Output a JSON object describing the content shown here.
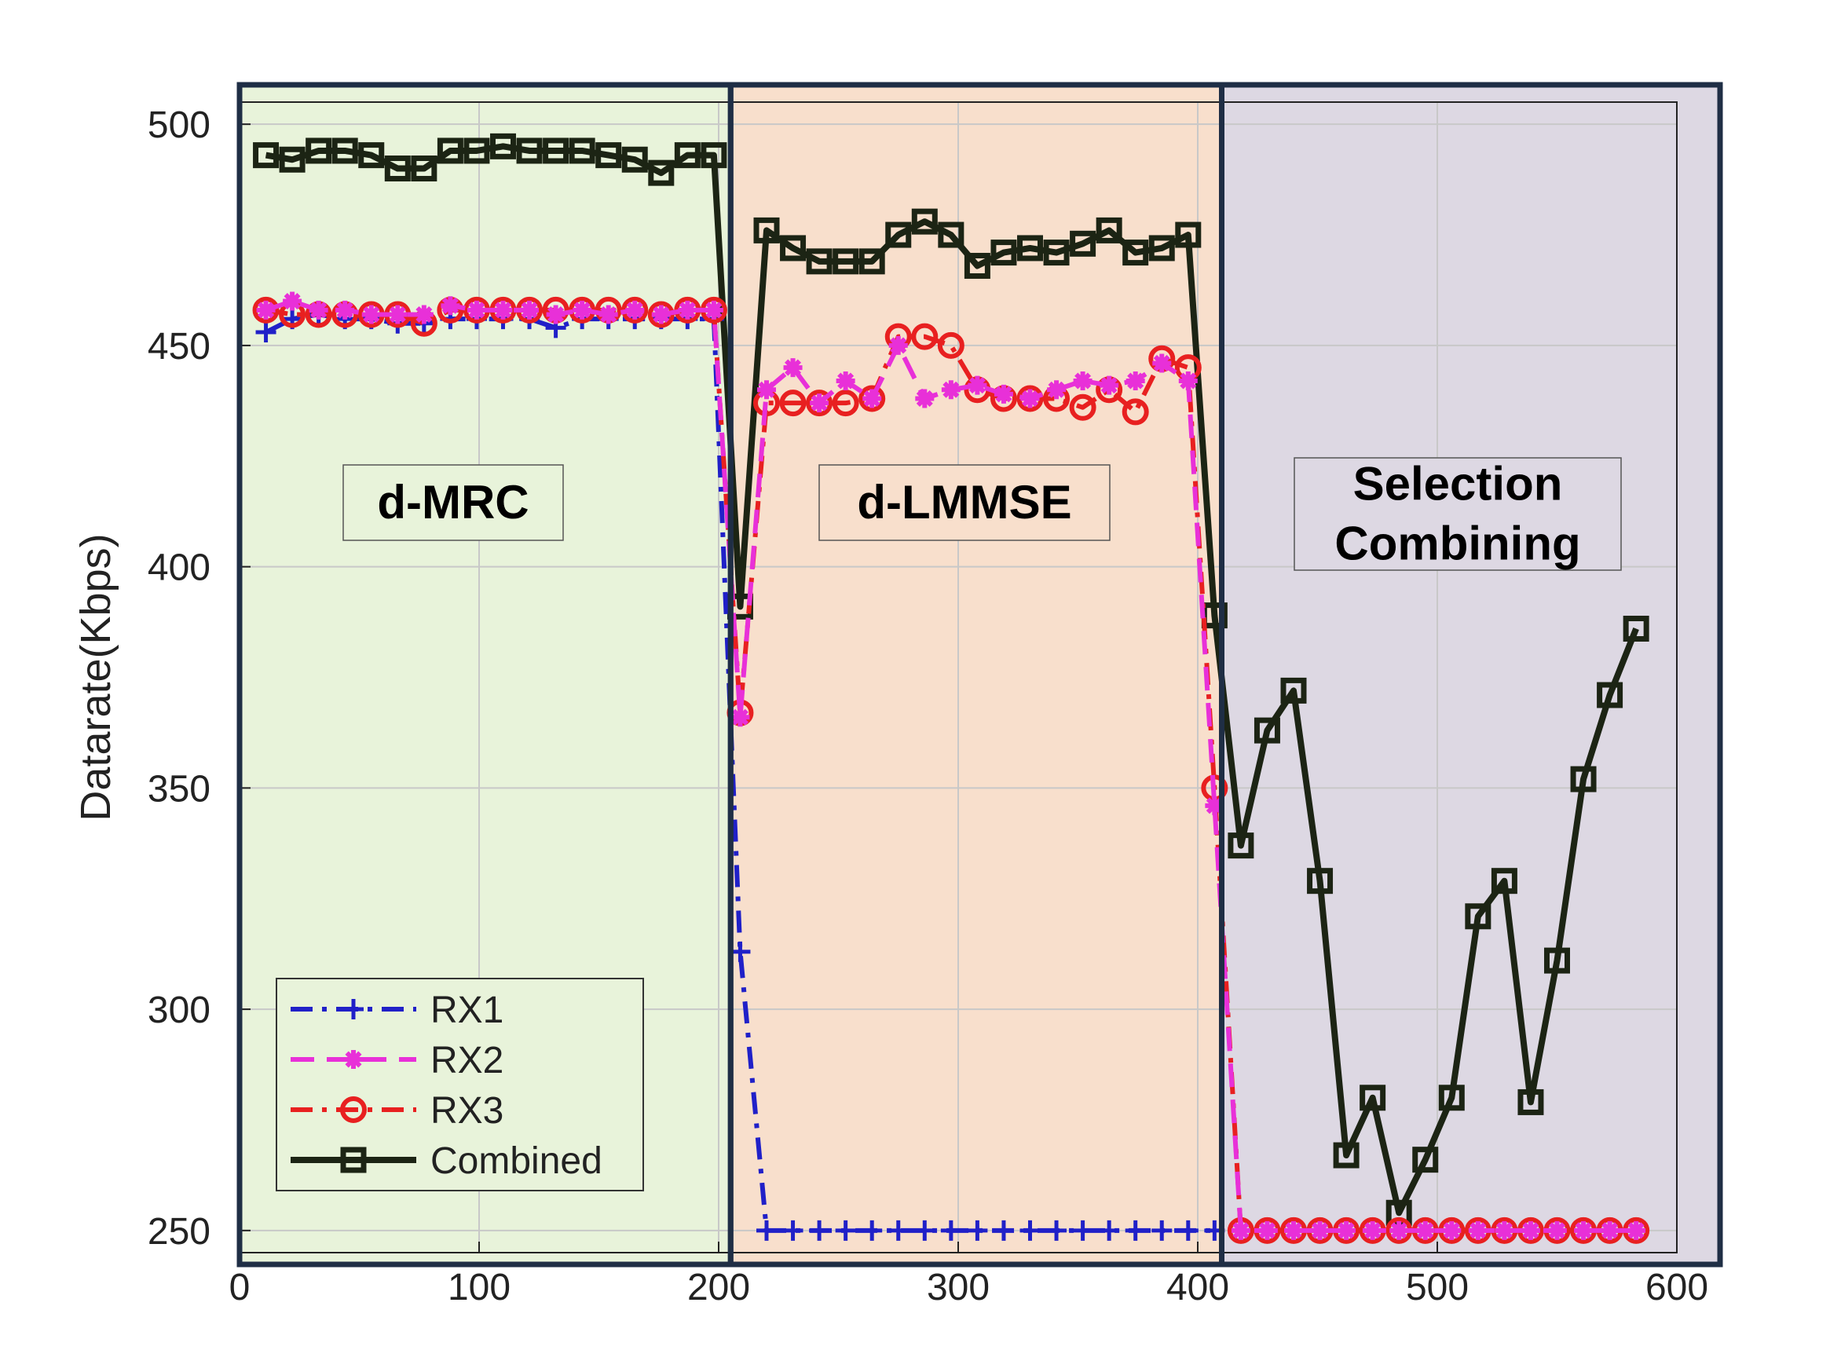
{
  "chart_data": {
    "type": "line",
    "title": "",
    "xlabel": "",
    "ylabel": "Datarate(Kbps)",
    "xlim": [
      0,
      600
    ],
    "ylim": [
      245,
      505
    ],
    "xticks": [
      0,
      100,
      200,
      300,
      400,
      500,
      600
    ],
    "yticks": [
      250,
      300,
      350,
      400,
      450,
      500
    ],
    "grid": true,
    "legend_position": "lower-left",
    "regions": [
      {
        "label_lines": [
          "d-MRC"
        ],
        "x_start": 0,
        "x_end": 205,
        "color": "#e8f3da"
      },
      {
        "label_lines": [
          "d-LMMSE"
        ],
        "x_start": 205,
        "x_end": 410,
        "color": "#f8dfcc"
      },
      {
        "label_lines": [
          "Selection",
          "Combining"
        ],
        "x_start": 410,
        "x_end": 620,
        "color": "#ddd8e3"
      }
    ],
    "region_border_color": "#1f2e45",
    "series": [
      {
        "name": "RX1",
        "color": "#2020c8",
        "dash": "dashdot",
        "marker": "plus",
        "x": [
          11,
          22,
          33,
          44,
          55,
          66,
          77,
          88,
          99,
          110,
          121,
          132,
          143,
          154,
          165,
          176,
          187,
          198,
          209,
          220,
          231,
          242,
          253,
          264,
          275,
          286,
          297,
          308,
          319,
          330,
          341,
          352,
          363,
          374,
          385,
          396,
          407
        ],
        "y": [
          453,
          456,
          457,
          456,
          456,
          455,
          455,
          456,
          456,
          456,
          456,
          454,
          456,
          456,
          456,
          456,
          456,
          456,
          313,
          250,
          250,
          250,
          250,
          250,
          250,
          250,
          250,
          250,
          250,
          250,
          250,
          250,
          250,
          250,
          250,
          250,
          250
        ]
      },
      {
        "name": "RX2",
        "color": "#e830d8",
        "dash": "dashed",
        "marker": "asterisk",
        "x": [
          11,
          22,
          33,
          44,
          55,
          66,
          77,
          88,
          99,
          110,
          121,
          132,
          143,
          154,
          165,
          176,
          187,
          198,
          209,
          220,
          231,
          242,
          253,
          264,
          275,
          286,
          297,
          308,
          319,
          330,
          341,
          352,
          363,
          374,
          385,
          396,
          407,
          418,
          429,
          440,
          451,
          462,
          473,
          484,
          495,
          506,
          517,
          528,
          539,
          550,
          561,
          572,
          583
        ],
        "y": [
          458,
          460,
          458,
          458,
          457,
          457,
          457,
          459,
          458,
          458,
          458,
          457,
          458,
          457,
          458,
          457,
          458,
          458,
          366,
          440,
          445,
          437,
          442,
          438,
          450,
          438,
          440,
          441,
          439,
          438,
          440,
          442,
          441,
          442,
          446,
          442,
          346,
          250,
          250,
          250,
          250,
          250,
          250,
          250,
          250,
          250,
          250,
          250,
          250,
          250,
          250,
          250,
          250
        ]
      },
      {
        "name": "RX3",
        "color": "#e82020",
        "dash": "dashdot",
        "marker": "circle",
        "x": [
          11,
          22,
          33,
          44,
          55,
          66,
          77,
          88,
          99,
          110,
          121,
          132,
          143,
          154,
          165,
          176,
          187,
          198,
          209,
          220,
          231,
          242,
          253,
          264,
          275,
          286,
          297,
          308,
          319,
          330,
          341,
          352,
          363,
          374,
          385,
          396,
          407,
          418,
          429,
          440,
          451,
          462,
          473,
          484,
          495,
          506,
          517,
          528,
          539,
          550,
          561,
          572,
          583
        ],
        "y": [
          458,
          457,
          457,
          457,
          457,
          457,
          455,
          458,
          458,
          458,
          458,
          458,
          458,
          458,
          458,
          457,
          458,
          458,
          367,
          437,
          437,
          437,
          437,
          438,
          452,
          452,
          450,
          440,
          438,
          438,
          438,
          436,
          440,
          435,
          447,
          445,
          350,
          250,
          250,
          250,
          250,
          250,
          250,
          250,
          250,
          250,
          250,
          250,
          250,
          250,
          250,
          250,
          250
        ]
      },
      {
        "name": "Combined",
        "color": "#1c2414",
        "dash": "solid",
        "marker": "square",
        "x": [
          11,
          22,
          33,
          44,
          55,
          66,
          77,
          88,
          99,
          110,
          121,
          132,
          143,
          154,
          165,
          176,
          187,
          198,
          209,
          220,
          231,
          242,
          253,
          264,
          275,
          286,
          297,
          308,
          319,
          330,
          341,
          352,
          363,
          374,
          385,
          396,
          407,
          418,
          429,
          440,
          451,
          462,
          473,
          484,
          495,
          506,
          517,
          528,
          539,
          550,
          561,
          572,
          583
        ],
        "y": [
          493,
          492,
          494,
          494,
          493,
          490,
          490,
          494,
          494,
          495,
          494,
          494,
          494,
          493,
          492,
          489,
          493,
          493,
          391,
          476,
          472,
          469,
          469,
          469,
          475,
          478,
          475,
          468,
          471,
          472,
          471,
          473,
          476,
          471,
          472,
          475,
          389,
          337,
          363,
          372,
          329,
          267,
          280,
          254,
          266,
          280,
          321,
          329,
          279,
          311,
          352,
          371,
          386
        ]
      }
    ]
  }
}
